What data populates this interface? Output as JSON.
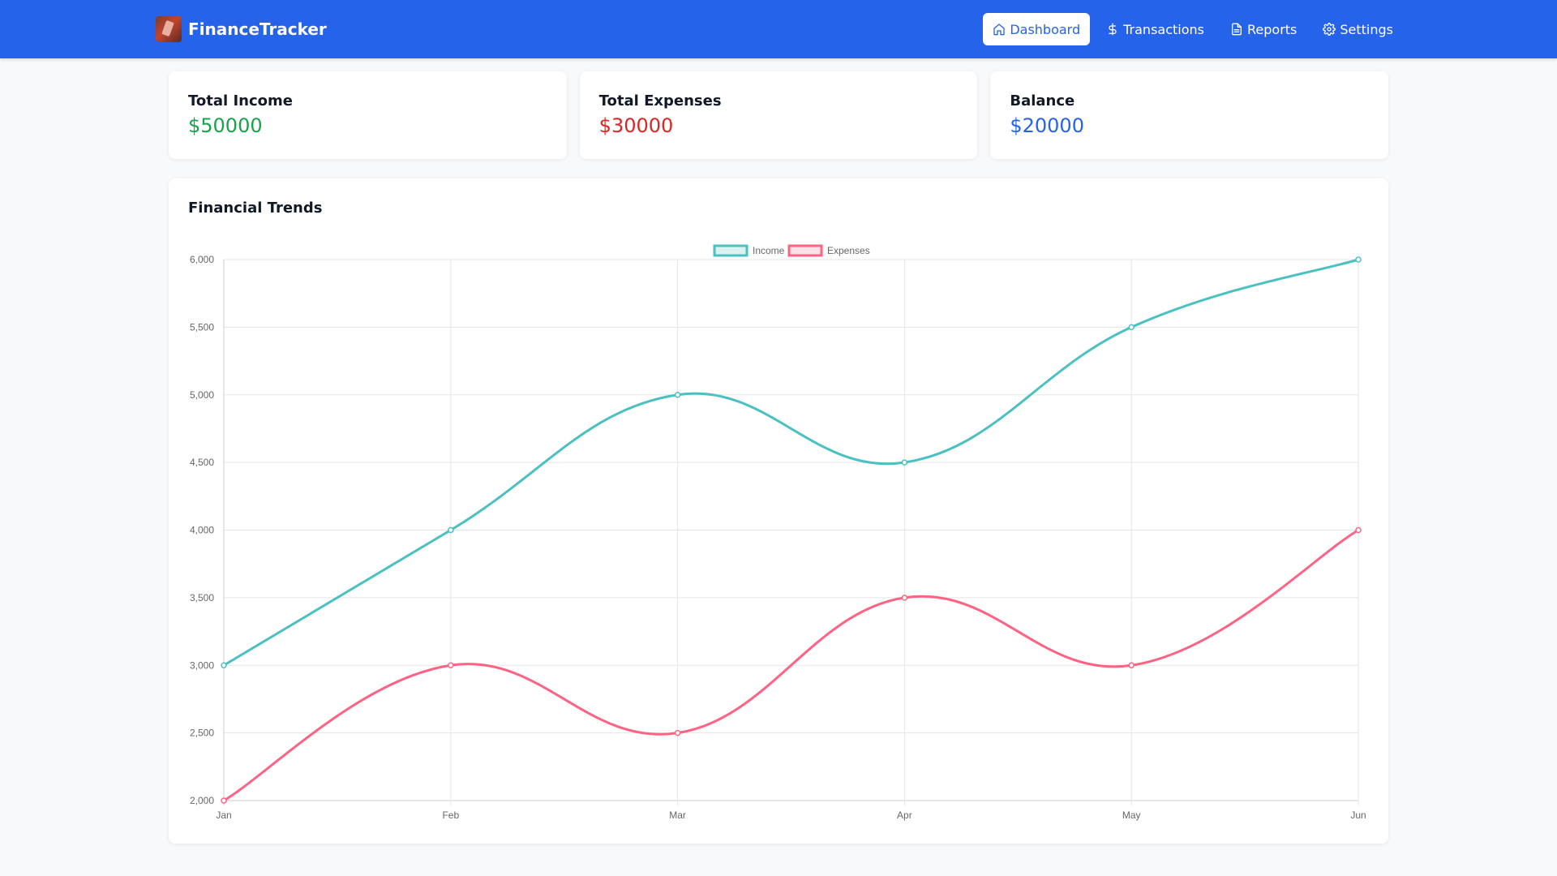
{
  "navbar": {
    "brand": "FinanceTracker",
    "logo_icon": "app-logo-icon",
    "items": [
      {
        "label": "Dashboard",
        "icon": "home-icon",
        "active": true
      },
      {
        "label": "Transactions",
        "icon": "dollar-icon",
        "active": false
      },
      {
        "label": "Reports",
        "icon": "document-icon",
        "active": false
      },
      {
        "label": "Settings",
        "icon": "gear-icon",
        "active": false
      }
    ],
    "bg_color": "#2563eb"
  },
  "summary": {
    "income": {
      "title": "Total Income",
      "value": "$50000",
      "color": "#16a34a"
    },
    "expenses": {
      "title": "Total Expenses",
      "value": "$30000",
      "color": "#dc2626"
    },
    "balance": {
      "title": "Balance",
      "value": "$20000",
      "color": "#2563eb"
    }
  },
  "chart_card": {
    "title": "Financial Trends"
  },
  "chart_data": {
    "type": "line",
    "categories": [
      "Jan",
      "Feb",
      "Mar",
      "Apr",
      "May",
      "Jun"
    ],
    "series": [
      {
        "name": "Income",
        "values": [
          3000,
          4000,
          5000,
          4500,
          5500,
          6000
        ],
        "color": "#4bc0c0"
      },
      {
        "name": "Expenses",
        "values": [
          2000,
          3000,
          2500,
          3500,
          3000,
          4000
        ],
        "color": "#ff6384"
      }
    ],
    "ylim": [
      2000,
      6000
    ],
    "yticks": [
      "2,000",
      "2,500",
      "3,000",
      "3,500",
      "4,000",
      "4,500",
      "5,000",
      "5,500",
      "6,000"
    ],
    "ytick_values": [
      2000,
      2500,
      3000,
      3500,
      4000,
      4500,
      5000,
      5500,
      6000
    ],
    "grid": true,
    "legend": "top-center",
    "title": "",
    "xlabel": "",
    "ylabel": ""
  }
}
